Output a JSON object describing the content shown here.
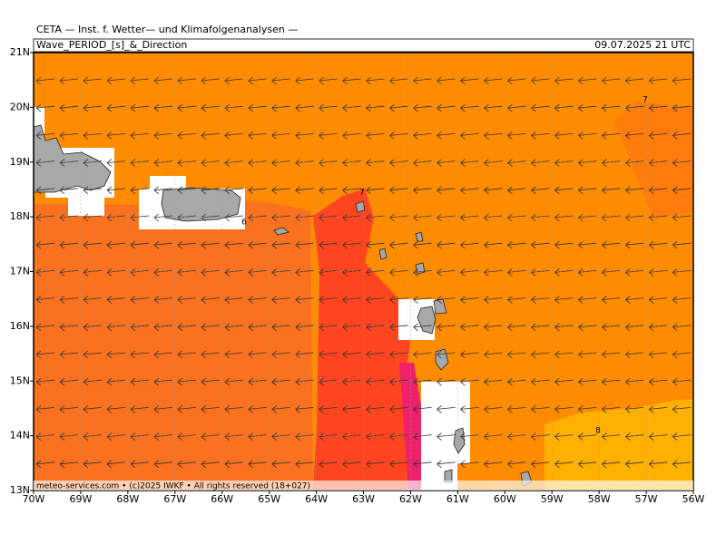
{
  "header": {
    "org": "CETA — Inst. f. Wetter— und Klimafolgenanalysen —",
    "field": "Wave_PERIOD_[s]_&_Direction",
    "valid": "09.07.2025 21 UTC"
  },
  "footer": "meteo-services.com • (c)2025 IWKF • All rights reserved (18+027)",
  "axes": {
    "lat_labels": [
      "21N",
      "20N",
      "19N",
      "18N",
      "17N",
      "16N",
      "15N",
      "14N",
      "13N"
    ],
    "lon_labels": [
      "70W",
      "69W",
      "68W",
      "67W",
      "66W",
      "65W",
      "64W",
      "63W",
      "62W",
      "61W",
      "60W",
      "59W",
      "58W",
      "57W",
      "56W"
    ]
  },
  "contour_labels": [
    "7",
    "6",
    "7",
    "8"
  ]
}
